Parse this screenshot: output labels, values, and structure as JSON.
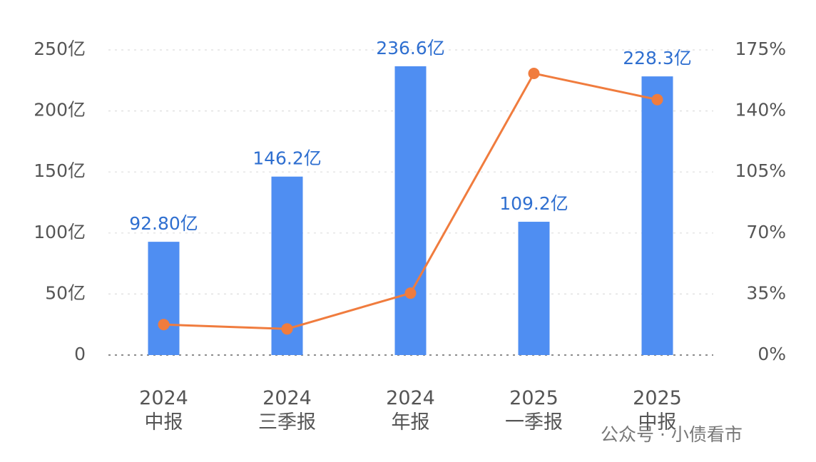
{
  "chart_data": {
    "type": "bar",
    "categories": [
      "2024\n中报",
      "2024\n三季报",
      "2024\n年报",
      "2025\n一季报",
      "2025\n中报"
    ],
    "series": [
      {
        "type": "bar",
        "color": "#4f8ef2",
        "values": [
          92.8,
          146.2,
          236.6,
          109.2,
          228.3
        ],
        "value_labels": [
          "92.80亿",
          "146.2亿",
          "236.6亿",
          "109.2亿",
          "228.3亿"
        ]
      },
      {
        "type": "line",
        "axis": "y2",
        "color": "#f07c3e",
        "values": [
          17.5,
          15,
          35.5,
          161.5,
          146.5
        ]
      }
    ],
    "ylim": [
      0,
      250
    ],
    "yticks": [
      0,
      {
        "value": 50,
        "label": "50亿"
      },
      {
        "value": 100,
        "label": "100亿"
      },
      {
        "value": 150,
        "label": "150亿"
      },
      {
        "value": 200,
        "label": "200亿"
      },
      {
        "value": 250,
        "label": "250亿"
      }
    ],
    "y2lim": [
      0,
      175
    ],
    "y2ticks": [
      {
        "value": 0,
        "label": "0%"
      },
      {
        "value": 35,
        "label": "35%"
      },
      {
        "value": 70,
        "label": "70%"
      },
      {
        "value": 105,
        "label": "105%"
      },
      {
        "value": 140,
        "label": "140%"
      },
      {
        "value": 175,
        "label": "175%"
      }
    ],
    "grid": true
  },
  "watermark": "公众号 · 小债看市"
}
